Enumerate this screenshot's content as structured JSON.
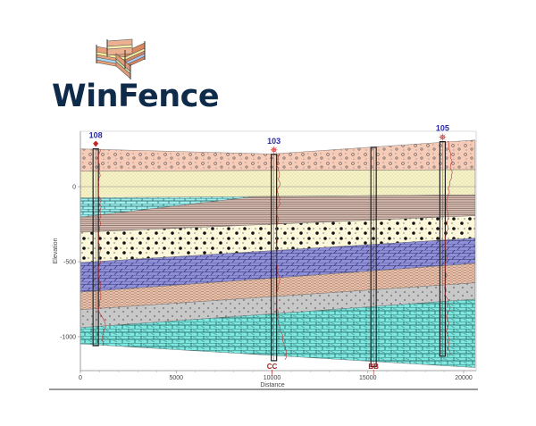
{
  "logo": {
    "text": "WinFence"
  },
  "chart_data": {
    "type": "cross-section",
    "xlabel": "Distance",
    "ylabel": "Elevation",
    "xlim": [
      0,
      20650
    ],
    "ylim": [
      -1230,
      370
    ],
    "x_ticks": [
      "0",
      "5000",
      "10000",
      "15000",
      "20000"
    ],
    "y_ticks": [
      "0",
      "-500",
      "-1000"
    ],
    "gridline_at_zero": true,
    "wells": [
      {
        "name": "108",
        "x": 800,
        "top": 252,
        "bottom": -1060,
        "symbol": "diamond-marker",
        "color": "#cc2222"
      },
      {
        "name": "103",
        "x": 10100,
        "top": 215,
        "bottom": -1160,
        "symbol": "sun-marker",
        "color": "#cc2222"
      },
      {
        "name": "",
        "x": 15300,
        "top": 262,
        "bottom": -1200,
        "symbol": "",
        "color": ""
      },
      {
        "name": "105",
        "x": 18900,
        "top": 300,
        "bottom": -1130,
        "symbol": "sun-marker",
        "color": "#cc2222"
      }
    ],
    "section_labels": [
      {
        "text": "CC",
        "x": 10000
      },
      {
        "text": "BB",
        "x": 15300
      }
    ],
    "boundaries": [
      [
        [
          0,
          252
        ],
        [
          10000,
          218
        ],
        [
          15000,
          262
        ],
        [
          20600,
          311
        ]
      ],
      [
        [
          0,
          103
        ],
        [
          20600,
          113
        ]
      ],
      [
        [
          0,
          -75
        ],
        [
          20600,
          -55
        ]
      ],
      [
        [
          0,
          -204
        ],
        [
          9000,
          -68
        ],
        [
          20600,
          -55
        ]
      ],
      [
        [
          0,
          -304
        ],
        [
          20600,
          -194
        ]
      ],
      [
        [
          0,
          -506
        ],
        [
          20600,
          -343
        ]
      ],
      [
        [
          0,
          -703
        ],
        [
          20600,
          -512
        ]
      ],
      [
        [
          0,
          -820
        ],
        [
          20600,
          -641
        ]
      ],
      [
        [
          0,
          -940
        ],
        [
          20600,
          -750
        ]
      ],
      [
        [
          0,
          -1048
        ],
        [
          20600,
          -1206
        ]
      ]
    ],
    "layers": [
      {
        "pattern": "conglomerate",
        "color": "#f6cbb8"
      },
      {
        "pattern": "sand",
        "color": "#f7f3c4"
      },
      {
        "pattern": "limestone",
        "color": "#9fefee"
      },
      {
        "pattern": "shale",
        "color": "#c9aaa0"
      },
      {
        "pattern": "gravel",
        "color": "#fdf8dc"
      },
      {
        "pattern": "dolomite",
        "color": "#8f8fd8"
      },
      {
        "pattern": "siltstone",
        "color": "#e8c0aa"
      },
      {
        "pattern": "granite",
        "color": "#c8c8c8"
      },
      {
        "pattern": "fossil-limestone",
        "color": "#7fe8e0"
      }
    ],
    "well_label_color": "#2a2aa8",
    "section_label_color": "#b02020",
    "log_curve_color": "#c03030"
  }
}
